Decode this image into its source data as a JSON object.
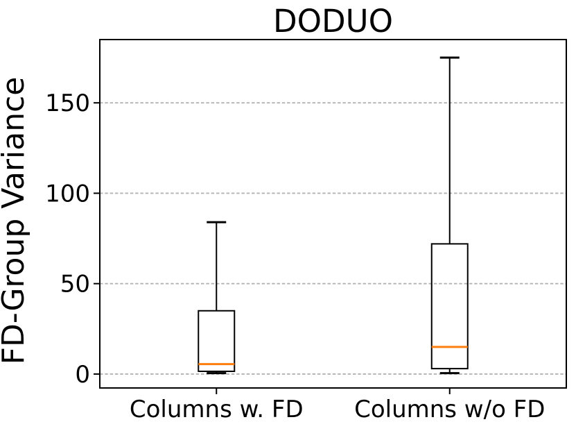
{
  "chart_data": {
    "type": "boxplot",
    "title": "DODUO",
    "ylabel": "FD-Group Variance",
    "xlabel": "",
    "categories": [
      "Columns w. FD",
      "Columns w/o FD"
    ],
    "yticks": [
      0,
      50,
      100,
      150
    ],
    "ylim": [
      -7.7,
      185
    ],
    "grid": "horizontal-dashed",
    "legend": "none",
    "series": [
      {
        "category": "Columns w. FD",
        "whisker_low": 0.5,
        "q1": 1.5,
        "median": 5.5,
        "q3": 35,
        "whisker_high": 84,
        "outliers": []
      },
      {
        "category": "Columns w/o FD",
        "whisker_low": 0.5,
        "q1": 3,
        "median": 15,
        "q3": 72,
        "whisker_high": 175,
        "outliers": []
      }
    ],
    "colors": {
      "box": "#000000",
      "median": "#ff7f0e",
      "grid": "#b3b3b3",
      "text": "#000000",
      "background": "#ffffff"
    }
  }
}
